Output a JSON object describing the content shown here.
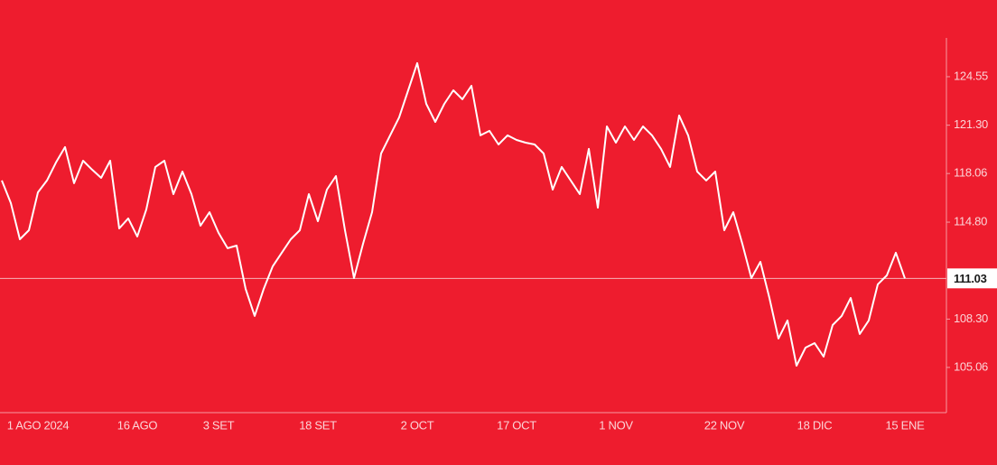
{
  "chart_data": {
    "type": "line",
    "background": "#ee1c2e",
    "x": [
      null,
      null,
      null,
      null,
      "1 AGO 2024",
      null,
      null,
      null,
      null,
      null,
      null,
      null,
      null,
      null,
      null,
      "16 AGO",
      null,
      null,
      null,
      null,
      null,
      null,
      null,
      null,
      "3 SET",
      null,
      null,
      null,
      null,
      null,
      null,
      null,
      null,
      null,
      null,
      "18 SET",
      null,
      null,
      null,
      null,
      null,
      null,
      null,
      null,
      null,
      null,
      "2 OCT",
      null,
      null,
      null,
      null,
      null,
      null,
      null,
      null,
      null,
      null,
      "17 OCT",
      null,
      null,
      null,
      null,
      null,
      null,
      null,
      null,
      null,
      null,
      "1 NOV",
      null,
      null,
      null,
      null,
      null,
      null,
      null,
      null,
      null,
      null,
      null,
      "22 NOV",
      null,
      null,
      null,
      null,
      null,
      null,
      null,
      null,
      null,
      "18 DIC",
      null,
      null,
      null,
      null,
      null,
      null,
      null,
      null,
      null,
      "15 ENE"
    ],
    "series": [
      {
        "color": "#ffffff",
        "values": [
          117.59,
          116.08,
          113.65,
          114.26,
          116.8,
          117.59,
          118.8,
          119.83,
          117.41,
          118.92,
          118.32,
          117.77,
          118.92,
          114.38,
          115.05,
          113.84,
          115.65,
          118.5,
          118.92,
          116.68,
          118.19,
          116.68,
          114.56,
          115.47,
          114.08,
          113.05,
          113.23,
          110.32,
          108.51,
          110.32,
          111.84,
          112.75,
          113.65,
          114.26,
          116.68,
          114.86,
          116.98,
          117.89,
          114.26,
          111.05,
          113.35,
          115.47,
          119.4,
          120.62,
          121.83,
          123.64,
          125.46,
          122.73,
          121.52,
          122.73,
          123.64,
          123.04,
          123.94,
          120.62,
          120.92,
          120.01,
          120.62,
          120.31,
          120.13,
          120.01,
          119.4,
          116.98,
          118.5,
          117.59,
          116.68,
          119.71,
          115.77,
          121.22,
          120.13,
          121.22,
          120.31,
          121.22,
          120.62,
          119.71,
          118.5,
          121.95,
          120.62,
          118.19,
          117.59,
          118.19,
          114.26,
          115.47,
          113.35,
          111.05,
          112.14,
          109.72,
          107.0,
          108.21,
          105.18,
          106.39,
          106.69,
          105.78,
          107.9,
          108.51,
          109.72,
          107.3,
          108.21,
          110.63,
          111.23,
          112.75,
          111.03
        ]
      }
    ],
    "last_value": 111.03,
    "ylim": [
      102.03,
      127.15
    ],
    "yticks": [
      105.06,
      {
        "value": 108.3,
        "label": "108.30"
      },
      {
        "value": 114.8,
        "label": "114.80"
      },
      118.06,
      {
        "value": 121.3,
        "label": "121.30"
      },
      124.55
    ],
    "y_axis_side": "right"
  }
}
